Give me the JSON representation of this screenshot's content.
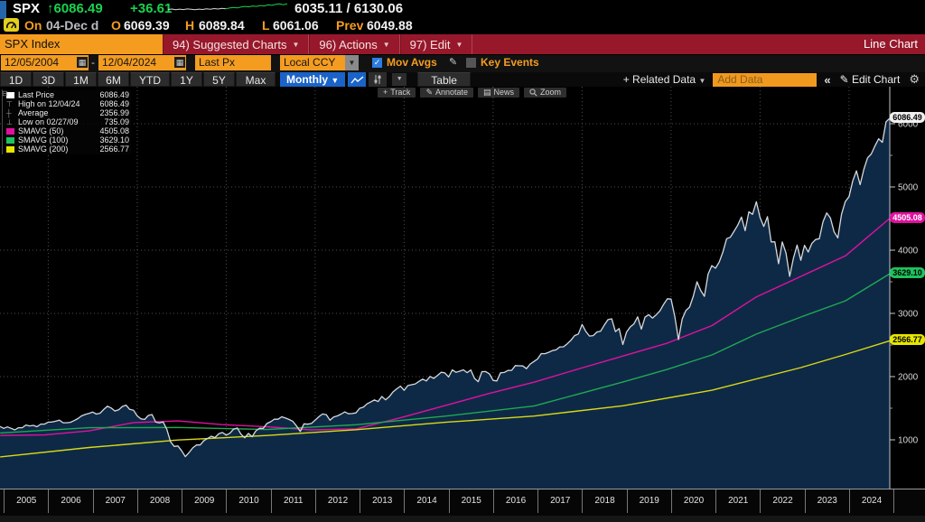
{
  "header": {
    "ticker": "SPX",
    "arrow": "↑",
    "last": "6086.49",
    "change": "+36.61",
    "bid_ask": "6035.11 / 6130.06",
    "session_label": "On",
    "session_date": "04-Dec d",
    "open_label": "O",
    "open": "6069.39",
    "high_label": "H",
    "high": "6089.84",
    "low_label": "L",
    "low": "6061.06",
    "prev_label": "Prev",
    "prev": "6049.88",
    "spark": [
      0.42,
      0.46,
      0.4,
      0.45,
      0.41,
      0.47,
      0.43,
      0.4,
      0.45,
      0.42,
      0.48,
      0.44,
      0.5,
      0.46,
      0.52,
      0.48,
      0.55,
      0.6,
      0.56,
      0.64,
      0.7,
      0.66,
      0.74,
      0.7,
      0.78,
      0.74,
      0.84,
      0.8,
      0.88,
      0.93,
      0.86,
      0.95
    ],
    "spark_split": 15
  },
  "menubar": {
    "security": "SPX Index",
    "items": [
      {
        "label": "94) Suggested Charts"
      },
      {
        "label": "96) Actions"
      },
      {
        "label": "97) Edit"
      }
    ],
    "right_label": "Line Chart"
  },
  "toolbar": {
    "date_from": "12/05/2004",
    "date_to": "12/04/2024",
    "price_field": "Last Px",
    "currency": "Local CCY",
    "mov_avgs_label": "Mov Avgs",
    "key_events_label": "Key Events"
  },
  "periodbar": {
    "ranges": [
      "1D",
      "3D",
      "1M",
      "6M",
      "YTD",
      "1Y",
      "5Y",
      "Max"
    ],
    "frequency": "Monthly",
    "table_label": "Table",
    "related_label": "+ Related Data",
    "add_data_placeholder": "Add Data",
    "collapse_label": "«",
    "edit_chart_label": "Edit Chart"
  },
  "chart_tools": [
    "Track",
    "Annotate",
    "News",
    "Zoom"
  ],
  "legend": {
    "rows": [
      {
        "swatch": "square",
        "color": "#ffffff",
        "label": "Last Price",
        "value": "6086.49"
      },
      {
        "swatch": "high",
        "color": "#9a9a9a",
        "label": "High on 12/04/24",
        "value": "6086.49"
      },
      {
        "swatch": "avg",
        "color": "#9a9a9a",
        "label": "Average",
        "value": "2356.99"
      },
      {
        "swatch": "low",
        "color": "#9a9a9a",
        "label": "Low on 02/27/09",
        "value": "735.09"
      },
      {
        "swatch": "square",
        "color": "#e0119f",
        "label": "SMAVG (50)",
        "value": "4505.08"
      },
      {
        "swatch": "square",
        "color": "#1fc25e",
        "label": "SMAVG (100)",
        "value": "3629.10"
      },
      {
        "swatch": "square",
        "color": "#e6e600",
        "label": "SMAVG (200)",
        "value": "2566.77"
      }
    ]
  },
  "axis_badges": {
    "last": "6086.49",
    "smavg50": "4505.08",
    "smavg100": "3629.10",
    "smavg200": "2566.77"
  },
  "chart_data": {
    "type": "line",
    "title": "SPX Index Line Chart, Monthly, 12/05/2004 - 12/04/2024",
    "x_start": 2004.9167,
    "frequency_months": 1,
    "ylim": [
      600,
      6300
    ],
    "y_ticks": [
      1000,
      2000,
      3000,
      4000,
      5000,
      6000
    ],
    "y_minor_ticks": [
      1500,
      2500,
      3500,
      4500,
      5500
    ],
    "grid_years": [
      2006,
      2008,
      2010,
      2012,
      2014,
      2016,
      2018,
      2020,
      2022,
      2024
    ],
    "x_axis_years": [
      "2005",
      "2006",
      "2007",
      "2008",
      "2009",
      "2010",
      "2011",
      "2012",
      "2013",
      "2014",
      "2015",
      "2016",
      "2017",
      "2018",
      "2019",
      "2020",
      "2021",
      "2022",
      "2023",
      "2024"
    ],
    "legend_position": "top-left",
    "grid": "dotted",
    "stats": {
      "last": 6086.49,
      "high_date": "12/04/24",
      "high": 6086.49,
      "average": 2356.99,
      "low_date": "02/27/09",
      "low": 735.09
    },
    "series": [
      {
        "name": "Last Price",
        "type": "area-line",
        "line_color": "#d6d9dc",
        "fill_color": "#0e2946",
        "values": [
          1212,
          1181,
          1204,
          1181,
          1157,
          1192,
          1191,
          1234,
          1220,
          1229,
          1207,
          1249,
          1248,
          1280,
          1281,
          1295,
          1311,
          1270,
          1270,
          1277,
          1304,
          1336,
          1378,
          1401,
          1418,
          1438,
          1407,
          1421,
          1482,
          1531,
          1503,
          1455,
          1474,
          1527,
          1549,
          1481,
          1468,
          1379,
          1331,
          1323,
          1386,
          1400,
          1280,
          1267,
          1283,
          1166,
          969,
          896,
          903,
          826,
          735,
          798,
          873,
          919,
          919,
          987,
          1021,
          1057,
          1036,
          1096,
          1115,
          1074,
          1104,
          1169,
          1187,
          1089,
          1031,
          1102,
          1049,
          1141,
          1183,
          1181,
          1258,
          1286,
          1327,
          1326,
          1364,
          1345,
          1321,
          1292,
          1219,
          1131,
          1253,
          1247,
          1258,
          1312,
          1366,
          1408,
          1398,
          1310,
          1362,
          1379,
          1407,
          1441,
          1412,
          1416,
          1426,
          1498,
          1515,
          1569,
          1598,
          1631,
          1606,
          1686,
          1633,
          1682,
          1757,
          1806,
          1848,
          1783,
          1859,
          1872,
          1884,
          1924,
          1960,
          1931,
          2003,
          1972,
          2018,
          2068,
          2059,
          1995,
          2105,
          2068,
          2086,
          2107,
          2063,
          2104,
          1972,
          1920,
          2079,
          2080,
          2044,
          1940,
          1932,
          2060,
          2065,
          2097,
          2099,
          2174,
          2171,
          2168,
          2126,
          2199,
          2239,
          2279,
          2364,
          2363,
          2384,
          2412,
          2423,
          2470,
          2472,
          2519,
          2575,
          2648,
          2674,
          2824,
          2714,
          2641,
          2648,
          2705,
          2718,
          2816,
          2902,
          2914,
          2712,
          2760,
          2507,
          2704,
          2785,
          2834,
          2946,
          2752,
          2942,
          2980,
          2926,
          2977,
          3038,
          3141,
          3231,
          3226,
          2954,
          2585,
          2912,
          3044,
          3100,
          3271,
          3500,
          3363,
          3270,
          3622,
          3756,
          3714,
          3811,
          3973,
          4181,
          4204,
          4298,
          4395,
          4523,
          4308,
          4605,
          4567,
          4766,
          4516,
          4374,
          4530,
          4132,
          4132,
          3785,
          4130,
          3955,
          3586,
          3872,
          4080,
          3840,
          4077,
          3970,
          4109,
          4169,
          4180,
          4450,
          4589,
          4508,
          4288,
          4194,
          4568,
          4770,
          4846,
          5096,
          5254,
          5036,
          5278,
          5460,
          5522,
          5648,
          5762,
          5705,
          6032,
          6086
        ]
      },
      {
        "name": "SMAVG (50)",
        "type": "line",
        "line_color": "#e0119f",
        "points": [
          [
            2004.92,
            1068
          ],
          [
            2005.92,
            1077
          ],
          [
            2006.92,
            1142
          ],
          [
            2007.92,
            1273
          ],
          [
            2008.92,
            1299
          ],
          [
            2009.92,
            1240
          ],
          [
            2010.92,
            1205
          ],
          [
            2011.92,
            1157
          ],
          [
            2012.92,
            1173
          ],
          [
            2013.92,
            1348
          ],
          [
            2014.92,
            1542
          ],
          [
            2015.92,
            1734
          ],
          [
            2016.92,
            1911
          ],
          [
            2017.92,
            2121
          ],
          [
            2018.92,
            2326
          ],
          [
            2019.92,
            2530
          ],
          [
            2020.92,
            2807
          ],
          [
            2021.92,
            3262
          ],
          [
            2022.92,
            3586
          ],
          [
            2023.92,
            3910
          ],
          [
            2024.92,
            4505
          ]
        ]
      },
      {
        "name": "SMAVG (100)",
        "type": "line",
        "line_color": "#1fa953",
        "points": [
          [
            2004.92,
            1108
          ],
          [
            2006.92,
            1192
          ],
          [
            2008.92,
            1196
          ],
          [
            2010.92,
            1163
          ],
          [
            2012.92,
            1239
          ],
          [
            2014.92,
            1375
          ],
          [
            2016.92,
            1535
          ],
          [
            2018.92,
            1916
          ],
          [
            2019.92,
            2115
          ],
          [
            2020.92,
            2343
          ],
          [
            2021.92,
            2673
          ],
          [
            2022.92,
            2943
          ],
          [
            2023.92,
            3198
          ],
          [
            2024.92,
            3629
          ]
        ]
      },
      {
        "name": "SMAVG (200)",
        "type": "line",
        "line_color": "#d9d916",
        "points": [
          [
            2004.92,
            730
          ],
          [
            2006.92,
            879
          ],
          [
            2008.92,
            997
          ],
          [
            2010.92,
            1069
          ],
          [
            2012.92,
            1160
          ],
          [
            2014.92,
            1277
          ],
          [
            2016.92,
            1376
          ],
          [
            2018.92,
            1538
          ],
          [
            2020.92,
            1784
          ],
          [
            2022.92,
            2143
          ],
          [
            2023.92,
            2350
          ],
          [
            2024.92,
            2567
          ]
        ]
      }
    ]
  }
}
